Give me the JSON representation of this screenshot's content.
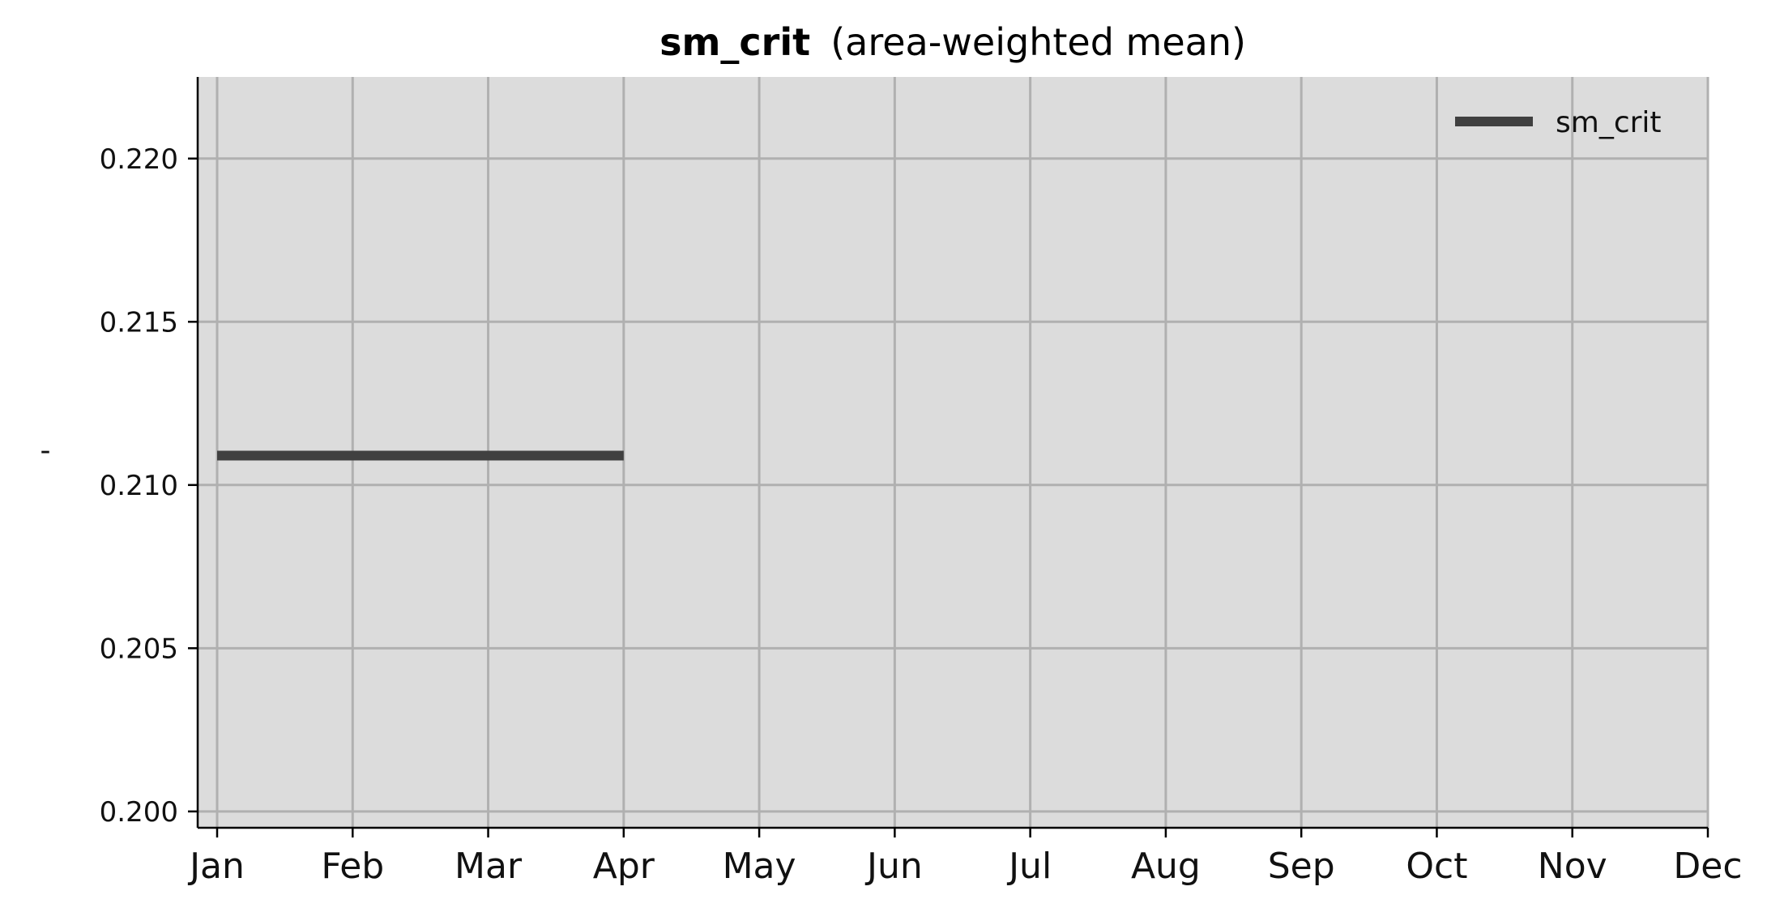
{
  "chart_data": {
    "type": "line",
    "title": "sm_crit",
    "subtitle": "(area-weighted mean)",
    "xlabel": "",
    "ylabel": "-",
    "x_ticks": [
      "Jan",
      "Feb",
      "Mar",
      "Apr",
      "May",
      "Jun",
      "Jul",
      "Aug",
      "Sep",
      "Oct",
      "Nov",
      "Dec"
    ],
    "y_ticks": [
      "0.200",
      "0.205",
      "0.210",
      "0.215",
      "0.220"
    ],
    "ylim": [
      0.1995,
      0.2225
    ],
    "grid": true,
    "legend_position": "top-right",
    "series": [
      {
        "name": "sm_crit",
        "x": [
          "Jan",
          "Feb",
          "Mar",
          "Apr"
        ],
        "values": [
          0.2109,
          0.2109,
          0.2109,
          0.2109
        ],
        "color": "#404040"
      }
    ],
    "colors": {
      "plot_background": "#dcdcdc",
      "grid": "#b0b0b0",
      "axis": "#000000"
    }
  }
}
